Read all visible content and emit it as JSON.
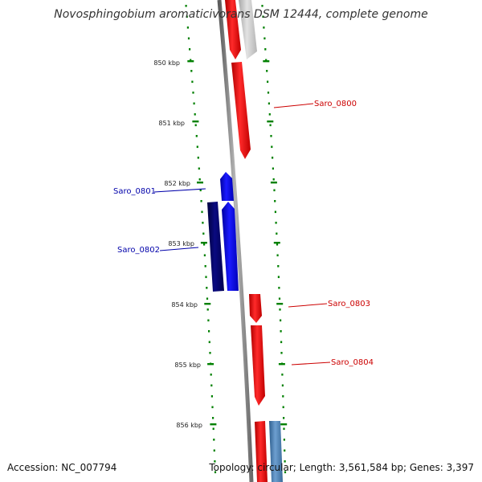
{
  "title": "Novosphingobium aromaticivorans DSM 12444, complete genome",
  "accession": "Accession: NC_007794",
  "summary": "Topology: circular; Length: 3,561,584 bp; Genes: 3,397",
  "scale": {
    "labels": [
      "850 kbp",
      "851 kbp",
      "852 kbp",
      "853 kbp",
      "854 kbp",
      "855 kbp",
      "856 kbp"
    ]
  },
  "genes": [
    {
      "label": "Saro_0800",
      "strand": "forward",
      "color": "#ff0000"
    },
    {
      "label": "Saro_0801",
      "strand": "reverse",
      "color": "#0000ee"
    },
    {
      "label": "Saro_0802",
      "strand": "reverse",
      "color": "#00006e"
    },
    {
      "label": "Saro_0803",
      "strand": "forward",
      "color": "#ff0000"
    },
    {
      "label": "Saro_0804",
      "strand": "forward",
      "color": "#ff0000"
    }
  ],
  "colors": {
    "forward_gene": "#ff0000",
    "reverse_gene": "#0000ee",
    "reverse_gene_dark": "#00006e",
    "faded_gene": "#c8c8c8",
    "steelblue_gene": "#4f7fae",
    "backbone": "#7a7a7a",
    "tick": "#008000",
    "label_forward": "#cc0000",
    "label_reverse": "#0000aa"
  }
}
